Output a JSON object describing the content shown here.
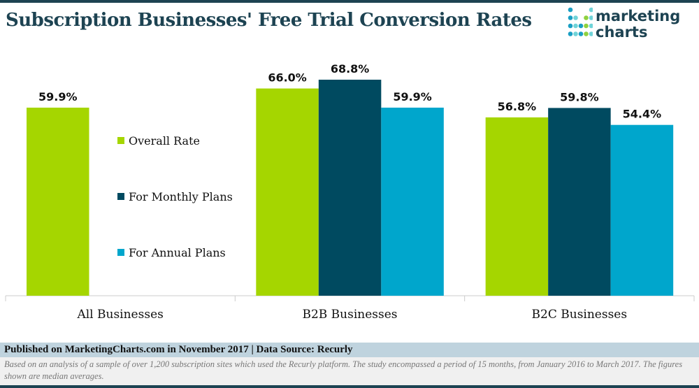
{
  "title": "Subscription Businesses' Free Trial Conversion Rates",
  "logo": {
    "line1": "marketing",
    "line2": "charts"
  },
  "chart_data": {
    "type": "bar",
    "categories": [
      "All Businesses",
      "B2B Businesses",
      "B2C Businesses"
    ],
    "series": [
      {
        "name": "Overall Rate",
        "color": "#a5d600",
        "values": [
          59.9,
          66.0,
          56.8
        ]
      },
      {
        "name": "For Monthly Plans",
        "color": "#004a60",
        "values": [
          null,
          68.8,
          59.8
        ]
      },
      {
        "name": "For Annual Plans",
        "color": "#00a6cc",
        "values": [
          null,
          59.9,
          54.4
        ]
      }
    ],
    "value_suffix": "%",
    "ylim": [
      0,
      70
    ],
    "grid": false,
    "legend_placement": "inside-left"
  },
  "footer": {
    "published": "Published on MarketingCharts.com in November 2017 | Data Source: Recurly",
    "note": "Based on an analysis of a sample of over 1,200 subscription sites which used the Recurly platform. The study encompassed a period of 15 months, from January 2016 to March 2017. The figures shown are median averages."
  }
}
